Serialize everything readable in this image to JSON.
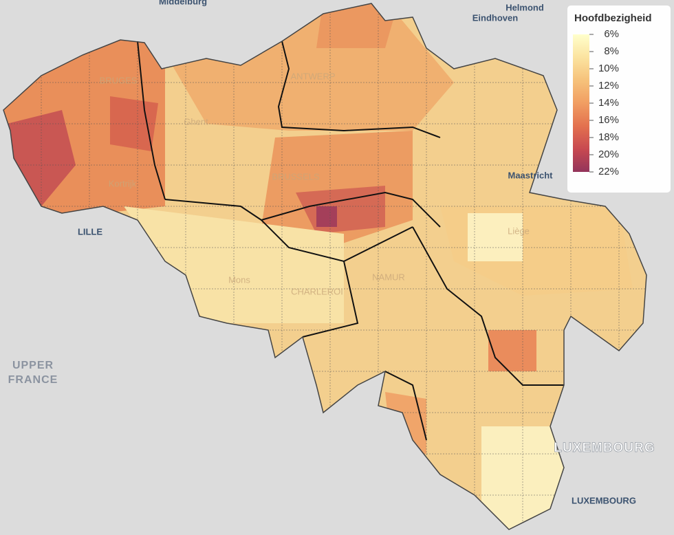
{
  "map_labels": [
    {
      "text": "Middelburg",
      "kind": "city"
    },
    {
      "text": "Helmond",
      "kind": "city"
    },
    {
      "text": "Eindhoven",
      "kind": "city"
    },
    {
      "text": "BRUGES",
      "kind": "faint"
    },
    {
      "text": "ANTWERP",
      "kind": "faint"
    },
    {
      "text": "Ghent",
      "kind": "faint"
    },
    {
      "text": "Kortrijk",
      "kind": "faint"
    },
    {
      "text": "BRUSSELS",
      "kind": "faint"
    },
    {
      "text": "Maastricht",
      "kind": "city"
    },
    {
      "text": "Liège",
      "kind": "faint"
    },
    {
      "text": "LILLE",
      "kind": "city"
    },
    {
      "text": "Mons",
      "kind": "faint"
    },
    {
      "text": "CHARLEROI",
      "kind": "faint"
    },
    {
      "text": "NAMUR",
      "kind": "faint"
    },
    {
      "text": "UPPER",
      "kind": "region"
    },
    {
      "text": "FRANCE",
      "kind": "region"
    },
    {
      "text": "LUXEMBOURG",
      "kind": "country"
    },
    {
      "text": "LUXEMBOURG",
      "kind": "city"
    }
  ],
  "legend": {
    "title": "Hoofdbezigheid",
    "colors": [
      "#ffffcc",
      "#fbe3a0",
      "#f6c27b",
      "#f19e62",
      "#e3714f",
      "#c84950",
      "#93345b"
    ],
    "ticks": [
      {
        "value": 6,
        "label": "6%"
      },
      {
        "value": 8,
        "label": "8%"
      },
      {
        "value": 10,
        "label": "10%"
      },
      {
        "value": 12,
        "label": "12%"
      },
      {
        "value": 14,
        "label": "14%"
      },
      {
        "value": 16,
        "label": "16%"
      },
      {
        "value": 18,
        "label": "18%"
      },
      {
        "value": 20,
        "label": "20%"
      },
      {
        "value": 22,
        "label": "22%"
      }
    ]
  }
}
